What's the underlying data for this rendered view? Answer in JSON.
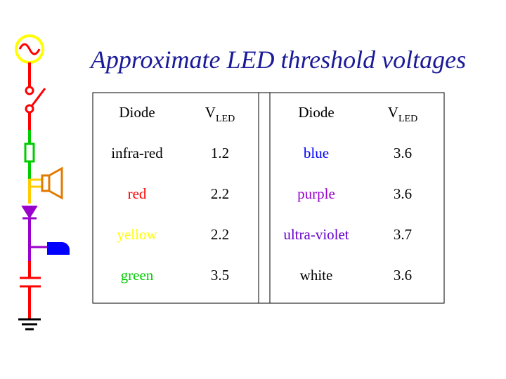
{
  "title": "Approximate LED threshold voltages",
  "table": {
    "header": [
      {
        "text": "Diode"
      },
      {
        "text": "V",
        "sub": "LED"
      },
      {
        "text": "Diode"
      },
      {
        "text": "V",
        "sub": "LED"
      }
    ],
    "rows": [
      [
        {
          "text": "infra-red",
          "color": "#000000"
        },
        {
          "text": "1.2"
        },
        {
          "text": "blue",
          "color": "#0000ff"
        },
        {
          "text": "3.6"
        }
      ],
      [
        {
          "text": "red",
          "color": "#ff0000"
        },
        {
          "text": "2.2"
        },
        {
          "text": "purple",
          "color": "#9900cc"
        },
        {
          "text": "3.6"
        }
      ],
      [
        {
          "text": "yellow",
          "color": "#ffff00"
        },
        {
          "text": "2.2"
        },
        {
          "text": "ultra-violet",
          "color": "#6600cc"
        },
        {
          "text": "3.7"
        }
      ],
      [
        {
          "text": "green",
          "color": "#00cc00"
        },
        {
          "text": "3.5"
        },
        {
          "text": "white",
          "color": "#000000"
        },
        {
          "text": "3.6"
        }
      ]
    ]
  }
}
